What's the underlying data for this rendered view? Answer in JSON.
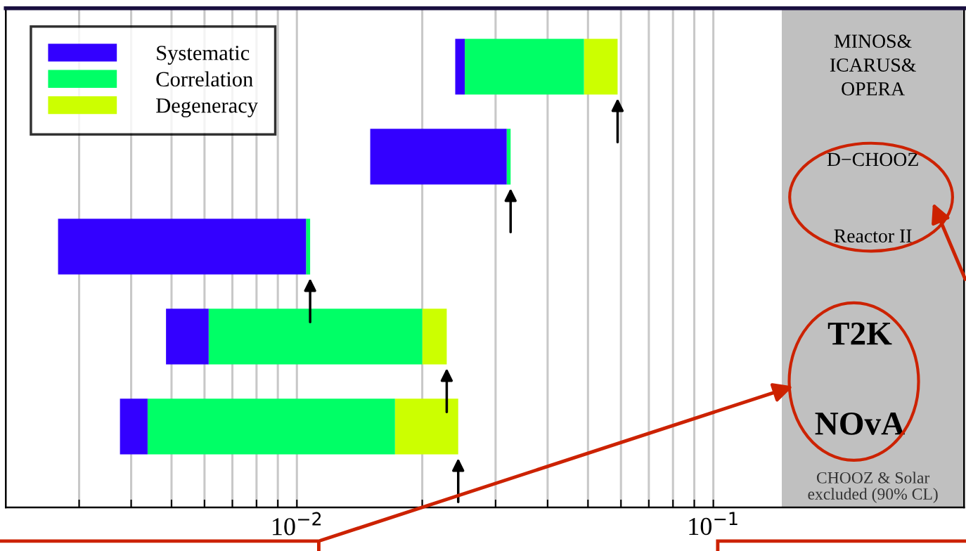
{
  "chart_data": {
    "type": "bar",
    "orientation": "horizontal",
    "log": "x",
    "categories": [
      "MINOS&\nICARUS&\nOPERA",
      "D−CHOOZ",
      "Reactor II",
      "T2K",
      "NOvA"
    ],
    "series": [
      {
        "name": "Systematic",
        "color": "#3300ff",
        "base": [
          0.024,
          0.015,
          0.00267,
          0.00485,
          0.00376
        ],
        "values": [
          0.0013,
          0.0169,
          0.00785,
          0.00129,
          0.00062
        ]
      },
      {
        "name": "Correlation",
        "color": "#00ff66",
        "base": [
          0.0253,
          0.0319,
          0.01052,
          0.00614,
          0.00438
        ],
        "values": [
          0.0236,
          0.0007,
          0.00024,
          0.01386,
          0.01282
        ]
      },
      {
        "name": "Degeneracy",
        "color": "#ccff00",
        "base": [
          0.0489,
          null,
          null,
          0.02,
          0.0172
        ],
        "values": [
          0.01,
          null,
          null,
          0.0029,
          0.0072
        ]
      }
    ],
    "xlim": [
      0.002,
      0.4
    ],
    "xticks": [
      {
        "value": 0.003,
        "label": null
      },
      {
        "value": 0.004,
        "label": null
      },
      {
        "value": 0.005,
        "label": null
      },
      {
        "value": 0.006,
        "label": null
      },
      {
        "value": 0.007,
        "label": null
      },
      {
        "value": 0.008,
        "label": null
      },
      {
        "value": 0.009,
        "label": null
      },
      {
        "value": 0.01,
        "label": "10$^{−2}$"
      },
      {
        "value": 0.02,
        "label": null
      },
      {
        "value": 0.03,
        "label": null
      },
      {
        "value": 0.04,
        "label": null
      },
      {
        "value": 0.05,
        "label": null
      },
      {
        "value": 0.06,
        "label": null
      },
      {
        "value": 0.07,
        "label": null
      },
      {
        "value": 0.08,
        "label": null
      },
      {
        "value": 0.09,
        "label": null
      },
      {
        "value": 0.1,
        "label": "10$^{−1}$"
      },
      {
        "value": 0.2,
        "label": null
      },
      {
        "value": 0.3,
        "label": null
      }
    ],
    "bands": [
      {
        "axis": "x",
        "from": 0.146,
        "to": 0.4,
        "label": "CHOOZ & Solar\nexcluded (90% CL)",
        "color": "#c0c0c0"
      }
    ],
    "grid": "x",
    "legend": "top left"
  }
}
